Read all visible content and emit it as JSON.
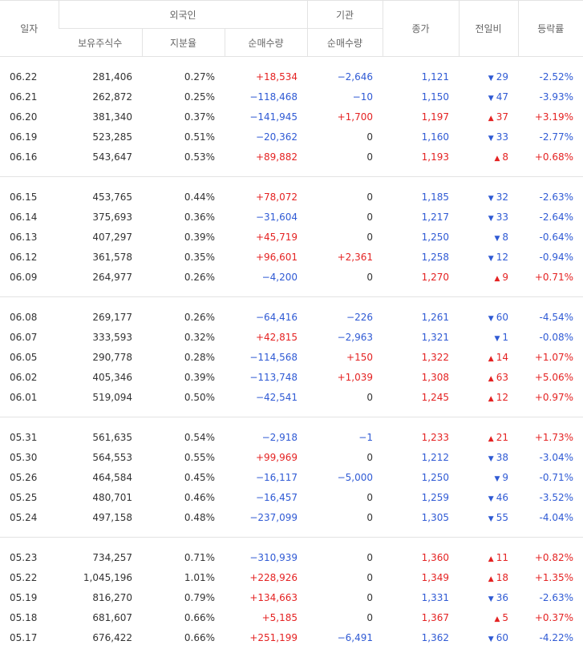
{
  "header": {
    "date": "일자",
    "foreign": "외국인",
    "institution": "기관",
    "close": "종가",
    "change": "전일비",
    "rate": "등락률",
    "holdings": "보유주식수",
    "ratio": "지분율",
    "foreign_net": "순매수량",
    "institution_net": "순매수량"
  },
  "table": {
    "groups": [
      [
        [
          "06.22",
          "281,406",
          "0.27%",
          "+18,534",
          "−2,646",
          "1,121",
          "29",
          "-2.52%"
        ],
        [
          "06.21",
          "262,872",
          "0.25%",
          "−118,468",
          "−10",
          "1,150",
          "47",
          "-3.93%"
        ],
        [
          "06.20",
          "381,340",
          "0.37%",
          "−141,945",
          "+1,700",
          "1,197",
          "37",
          "+3.19%"
        ],
        [
          "06.19",
          "523,285",
          "0.51%",
          "−20,362",
          "0",
          "1,160",
          "33",
          "-2.77%"
        ],
        [
          "06.16",
          "543,647",
          "0.53%",
          "+89,882",
          "0",
          "1,193",
          "8",
          "+0.68%"
        ]
      ],
      [
        [
          "06.15",
          "453,765",
          "0.44%",
          "+78,072",
          "0",
          "1,185",
          "32",
          "-2.63%"
        ],
        [
          "06.14",
          "375,693",
          "0.36%",
          "−31,604",
          "0",
          "1,217",
          "33",
          "-2.64%"
        ],
        [
          "06.13",
          "407,297",
          "0.39%",
          "+45,719",
          "0",
          "1,250",
          "8",
          "-0.64%"
        ],
        [
          "06.12",
          "361,578",
          "0.35%",
          "+96,601",
          "+2,361",
          "1,258",
          "12",
          "-0.94%"
        ],
        [
          "06.09",
          "264,977",
          "0.26%",
          "−4,200",
          "0",
          "1,270",
          "9",
          "+0.71%"
        ]
      ],
      [
        [
          "06.08",
          "269,177",
          "0.26%",
          "−64,416",
          "−226",
          "1,261",
          "60",
          "-4.54%"
        ],
        [
          "06.07",
          "333,593",
          "0.32%",
          "+42,815",
          "−2,963",
          "1,321",
          "1",
          "-0.08%"
        ],
        [
          "06.05",
          "290,778",
          "0.28%",
          "−114,568",
          "+150",
          "1,322",
          "14",
          "+1.07%"
        ],
        [
          "06.02",
          "405,346",
          "0.39%",
          "−113,748",
          "+1,039",
          "1,308",
          "63",
          "+5.06%"
        ],
        [
          "06.01",
          "519,094",
          "0.50%",
          "−42,541",
          "0",
          "1,245",
          "12",
          "+0.97%"
        ]
      ],
      [
        [
          "05.31",
          "561,635",
          "0.54%",
          "−2,918",
          "−1",
          "1,233",
          "21",
          "+1.73%"
        ],
        [
          "05.30",
          "564,553",
          "0.55%",
          "+99,969",
          "0",
          "1,212",
          "38",
          "-3.04%"
        ],
        [
          "05.26",
          "464,584",
          "0.45%",
          "−16,117",
          "−5,000",
          "1,250",
          "9",
          "-0.71%"
        ],
        [
          "05.25",
          "480,701",
          "0.46%",
          "−16,457",
          "0",
          "1,259",
          "46",
          "-3.52%"
        ],
        [
          "05.24",
          "497,158",
          "0.48%",
          "−237,099",
          "0",
          "1,305",
          "55",
          "-4.04%"
        ]
      ],
      [
        [
          "05.23",
          "734,257",
          "0.71%",
          "−310,939",
          "0",
          "1,360",
          "11",
          "+0.82%"
        ],
        [
          "05.22",
          "1,045,196",
          "1.01%",
          "+228,926",
          "0",
          "1,349",
          "18",
          "+1.35%"
        ],
        [
          "05.19",
          "816,270",
          "0.79%",
          "+134,663",
          "0",
          "1,331",
          "36",
          "-2.63%"
        ],
        [
          "05.18",
          "681,607",
          "0.66%",
          "+5,185",
          "0",
          "1,367",
          "5",
          "+0.37%"
        ],
        [
          "05.17",
          "676,422",
          "0.66%",
          "+251,199",
          "−6,491",
          "1,362",
          "60",
          "-4.22%"
        ]
      ]
    ]
  }
}
